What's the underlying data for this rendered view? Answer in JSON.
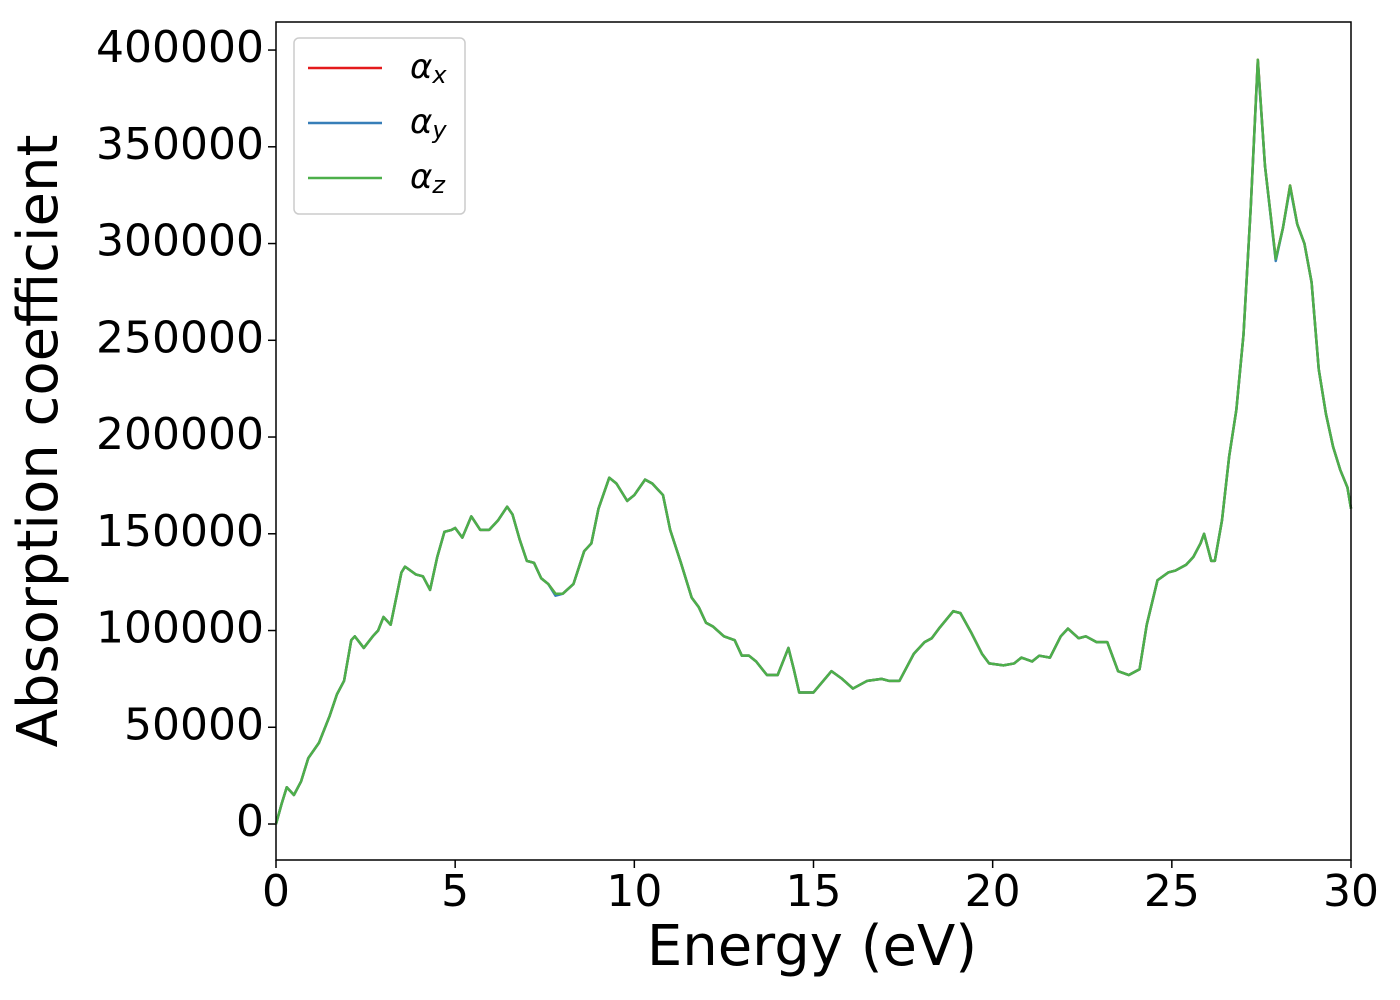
{
  "chart_data": {
    "type": "line",
    "xlabel": "Energy (eV)",
    "ylabel": "Absorption coefficient",
    "x": [
      0,
      0.15,
      0.3,
      0.5,
      0.7,
      0.9,
      1.2,
      1.5,
      1.7,
      1.9,
      2.1,
      2.2,
      2.45,
      2.7,
      2.85,
      3.0,
      3.2,
      3.5,
      3.6,
      3.9,
      4.1,
      4.3,
      4.5,
      4.7,
      4.9,
      5.0,
      5.2,
      5.45,
      5.7,
      5.95,
      6.2,
      6.45,
      6.6,
      6.8,
      7.0,
      7.2,
      7.4,
      7.6,
      7.8,
      8.0,
      8.3,
      8.6,
      8.8,
      9.0,
      9.3,
      9.5,
      9.8,
      10.0,
      10.3,
      10.5,
      10.8,
      11.0,
      11.3,
      11.6,
      11.8,
      12.0,
      12.2,
      12.5,
      12.8,
      13.0,
      13.2,
      13.4,
      13.7,
      14.0,
      14.3,
      14.45,
      14.6,
      15.0,
      15.5,
      15.8,
      16.1,
      16.5,
      16.9,
      17.1,
      17.4,
      17.8,
      18.1,
      18.3,
      18.5,
      18.9,
      19.1,
      19.4,
      19.7,
      19.9,
      20.3,
      20.6,
      20.8,
      21.1,
      21.3,
      21.6,
      21.9,
      22.1,
      22.4,
      22.6,
      22.9,
      23.2,
      23.5,
      23.8,
      24.1,
      24.3,
      24.6,
      24.9,
      25.1,
      25.4,
      25.6,
      25.8,
      25.9,
      26.1,
      26.2,
      26.4,
      26.6,
      26.8,
      27.0,
      27.2,
      27.4,
      27.6,
      27.9,
      28.1,
      28.3,
      28.5,
      28.7,
      28.9,
      29.1,
      29.3,
      29.5,
      29.7,
      29.9,
      30.0
    ],
    "series": [
      {
        "name": "αx",
        "color": "#e41a1c",
        "values": [
          0,
          10000,
          19000,
          15000,
          22000,
          34000,
          42000,
          56000,
          67000,
          74000,
          95000,
          97000,
          91000,
          97000,
          100000,
          107000,
          103000,
          130000,
          133000,
          129000,
          128000,
          121000,
          138000,
          151000,
          152000,
          153000,
          148000,
          159000,
          152000,
          152000,
          157000,
          164000,
          160000,
          147000,
          136000,
          135000,
          127000,
          124000,
          119000,
          119000,
          124000,
          141000,
          145000,
          163000,
          179000,
          176000,
          167000,
          170000,
          178000,
          176000,
          170000,
          152000,
          135000,
          117000,
          112000,
          104000,
          102000,
          97000,
          95000,
          87000,
          87000,
          84000,
          77000,
          77000,
          91000,
          80000,
          68000,
          68000,
          79000,
          75000,
          70000,
          74000,
          75000,
          74000,
          74000,
          88000,
          94000,
          96000,
          101000,
          110000,
          109000,
          99000,
          88000,
          83000,
          82000,
          83000,
          86000,
          84000,
          87000,
          86000,
          97000,
          101000,
          96000,
          97000,
          94000,
          94000,
          79000,
          77000,
          80000,
          103000,
          126000,
          130000,
          131000,
          134000,
          138000,
          145000,
          150000,
          136000,
          136000,
          157000,
          190000,
          214000,
          253000,
          318000,
          395000,
          340000,
          292000,
          308000,
          330000,
          310000,
          300000,
          280000,
          235000,
          212000,
          195000,
          183000,
          174000,
          163000
        ]
      },
      {
        "name": "αy",
        "color": "#377eb8",
        "values": [
          0,
          10000,
          19000,
          15000,
          22000,
          34000,
          42000,
          56000,
          67000,
          74000,
          95000,
          97000,
          91000,
          97000,
          100000,
          107000,
          103000,
          130000,
          133000,
          129000,
          128000,
          121000,
          138000,
          151000,
          152000,
          153000,
          148000,
          159000,
          152000,
          152000,
          157000,
          164000,
          160000,
          147000,
          136000,
          135000,
          127000,
          124000,
          118000,
          119000,
          124000,
          141000,
          145000,
          163000,
          179000,
          176000,
          167000,
          170000,
          178000,
          176000,
          170000,
          152000,
          135000,
          117000,
          112000,
          104000,
          102000,
          97000,
          95000,
          87000,
          87000,
          84000,
          77000,
          77000,
          91000,
          80000,
          68000,
          68000,
          79000,
          75000,
          70000,
          74000,
          75000,
          74000,
          74000,
          88000,
          94000,
          96000,
          101000,
          110000,
          109000,
          99000,
          88000,
          83000,
          82000,
          83000,
          86000,
          84000,
          87000,
          86000,
          97000,
          101000,
          96000,
          97000,
          94000,
          94000,
          79000,
          77000,
          80000,
          103000,
          126000,
          130000,
          131000,
          134000,
          138000,
          145000,
          150000,
          136000,
          136000,
          157000,
          190000,
          214000,
          253000,
          318000,
          394000,
          340000,
          291000,
          308000,
          329000,
          310000,
          300000,
          280000,
          235000,
          212000,
          195000,
          183000,
          174000,
          163000
        ]
      },
      {
        "name": "αz",
        "color": "#4daf4a",
        "values": [
          0,
          10000,
          19000,
          15000,
          22000,
          34000,
          42000,
          56000,
          67000,
          74000,
          95000,
          97000,
          91000,
          97000,
          100000,
          107000,
          103000,
          130000,
          133000,
          129000,
          128000,
          121000,
          138000,
          151000,
          152000,
          153000,
          148000,
          159000,
          152000,
          152000,
          157000,
          164000,
          160000,
          147000,
          136000,
          135000,
          127000,
          124000,
          119000,
          119000,
          124000,
          141000,
          145000,
          163000,
          179000,
          176000,
          167000,
          170000,
          178000,
          176000,
          170000,
          152000,
          135000,
          117000,
          112000,
          104000,
          102000,
          97000,
          95000,
          87000,
          87000,
          84000,
          77000,
          77000,
          91000,
          80000,
          68000,
          68000,
          79000,
          75000,
          70000,
          74000,
          75000,
          74000,
          74000,
          88000,
          94000,
          96000,
          101000,
          110000,
          109000,
          99000,
          88000,
          83000,
          82000,
          83000,
          86000,
          84000,
          87000,
          86000,
          97000,
          101000,
          96000,
          97000,
          94000,
          94000,
          79000,
          77000,
          80000,
          103000,
          126000,
          130000,
          131000,
          134000,
          138000,
          145000,
          150000,
          136000,
          136000,
          157000,
          190000,
          214000,
          253000,
          318000,
          395000,
          340000,
          292000,
          308000,
          330000,
          310000,
          300000,
          280000,
          235000,
          212000,
          195000,
          183000,
          174000,
          163000
        ]
      }
    ],
    "xlim": [
      0,
      30
    ],
    "xticks": [
      0,
      5,
      10,
      15,
      20,
      25,
      30
    ],
    "ylim": [
      -18600,
      414500
    ],
    "yticks": [
      0,
      50000,
      100000,
      150000,
      200000,
      250000,
      300000,
      350000,
      400000
    ],
    "grid": false,
    "legend": "upper left"
  }
}
